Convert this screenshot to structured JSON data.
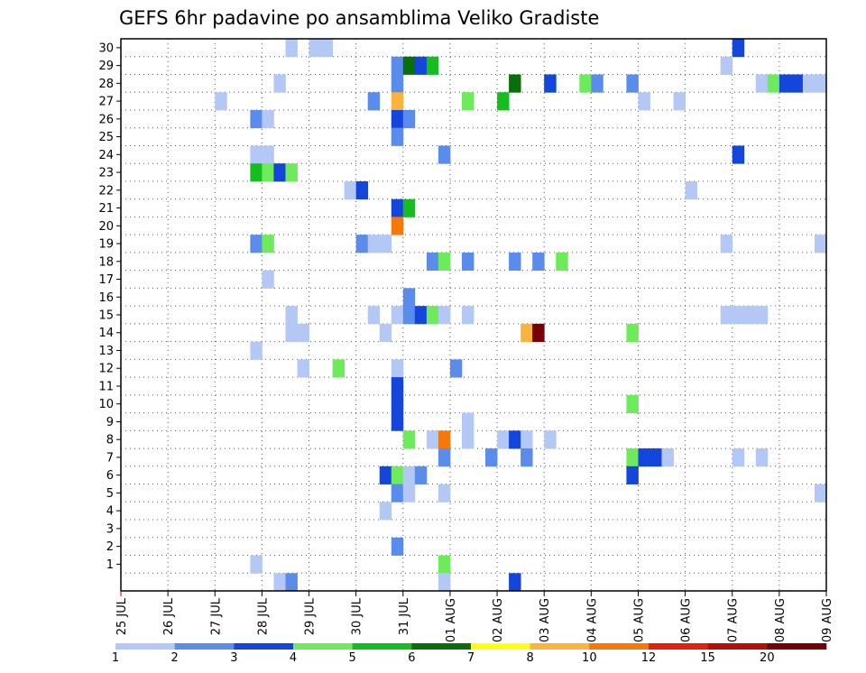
{
  "chart_data": {
    "type": "heatmap",
    "title": "GEFS 6hr padavine po ansamblima Veliko Gradiste",
    "x_ticks": [
      "25 JUL",
      "26 JUL",
      "27 JUL",
      "28 JUL",
      "29 JUL",
      "30 JUL",
      "31 JUL",
      "01 AUG",
      "02 AUG",
      "03 AUG",
      "04 AUG",
      "05 AUG",
      "06 AUG",
      "07 AUG",
      "08 AUG",
      "09 AUG"
    ],
    "y_ticks": [
      "1",
      "2",
      "3",
      "4",
      "5",
      "6",
      "7",
      "8",
      "9",
      "10",
      "11",
      "12",
      "13",
      "14",
      "15",
      "16",
      "17",
      "18",
      "19",
      "20",
      "21",
      "22",
      "23",
      "24",
      "25",
      "26",
      "27",
      "28",
      "29",
      "30"
    ],
    "xlim": [
      "25 JUL",
      "09 AUG"
    ],
    "ylim": [
      0,
      30
    ],
    "grid": true,
    "legend": {
      "placement": "bottom",
      "labels": [
        "1",
        "2",
        "3",
        "4",
        "5",
        "6",
        "7",
        "8",
        "10",
        "12",
        "15",
        "20"
      ],
      "colors": [
        "#b4c8f5",
        "#5a8ceb",
        "#1446dc",
        "#6eeb5a",
        "#14be1e",
        "#0a6e0a",
        "#ffff14",
        "#fab43c",
        "#f5780a",
        "#e61e0a",
        "#b40f0a",
        "#780005"
      ]
    },
    "cells": [
      {
        "day": "29 JUL",
        "slot": 2,
        "member": 30,
        "value": 1
      },
      {
        "day": "30 JUL",
        "slot": 0,
        "member": 30,
        "value": 1
      },
      {
        "day": "30 JUL",
        "slot": 1,
        "member": 30,
        "value": 1
      },
      {
        "day": "08 AUG",
        "slot": 0,
        "member": 30,
        "value": 3
      },
      {
        "day": "31 JUL",
        "slot": 3,
        "member": 29,
        "value": 2
      },
      {
        "day": "01 AUG",
        "slot": 0,
        "member": 29,
        "value": 6
      },
      {
        "day": "01 AUG",
        "slot": 1,
        "member": 29,
        "value": 3
      },
      {
        "day": "01 AUG",
        "slot": 2,
        "member": 29,
        "value": 5
      },
      {
        "day": "07 AUG",
        "slot": 3,
        "member": 29,
        "value": 1
      },
      {
        "day": "29 JUL",
        "slot": 1,
        "member": 28,
        "value": 1
      },
      {
        "day": "31 JUL",
        "slot": 3,
        "member": 28,
        "value": 2
      },
      {
        "day": "03 AUG",
        "slot": 1,
        "member": 28,
        "value": 6
      },
      {
        "day": "03 AUG",
        "slot": 4,
        "member": 28,
        "value": 4
      },
      {
        "day": "04 AUG",
        "slot": 0,
        "member": 28,
        "value": 3
      },
      {
        "day": "04 AUG",
        "slot": 3,
        "member": 28,
        "value": 4
      },
      {
        "day": "05 AUG",
        "slot": 0,
        "member": 28,
        "value": 2
      },
      {
        "day": "05 AUG",
        "slot": 3,
        "member": 28,
        "value": 2
      },
      {
        "day": "08 AUG",
        "slot": 2,
        "member": 28,
        "value": 1
      },
      {
        "day": "08 AUG",
        "slot": 3,
        "member": 28,
        "value": 4
      },
      {
        "day": "09 AUG",
        "slot": 0,
        "member": 28,
        "value": 3
      },
      {
        "day": "09 AUG",
        "slot": 1,
        "member": 28,
        "value": 3
      },
      {
        "day": "09 AUG",
        "slot": 2,
        "member": 28,
        "value": 1
      },
      {
        "day": "09 AUG",
        "slot": 3,
        "member": 28,
        "value": 1
      },
      {
        "day": "28 JUL",
        "slot": 0,
        "member": 27,
        "value": 1
      },
      {
        "day": "31 JUL",
        "slot": 1,
        "member": 27,
        "value": 2
      },
      {
        "day": "31 JUL",
        "slot": 3,
        "member": 27,
        "value": 8
      },
      {
        "day": "02 AUG",
        "slot": 1,
        "member": 27,
        "value": 4
      },
      {
        "day": "03 AUG",
        "slot": 0,
        "member": 27,
        "value": 5
      },
      {
        "day": "06 AUG",
        "slot": 0,
        "member": 27,
        "value": 1
      },
      {
        "day": "06 AUG",
        "slot": 3,
        "member": 27,
        "value": 1
      },
      {
        "day": "28 JUL",
        "slot": 3,
        "member": 26,
        "value": 2
      },
      {
        "day": "29 JUL",
        "slot": 0,
        "member": 26,
        "value": 1
      },
      {
        "day": "31 JUL",
        "slot": 3,
        "member": 26,
        "value": 3
      },
      {
        "day": "01 AUG",
        "slot": 0,
        "member": 26,
        "value": 2
      },
      {
        "day": "31 JUL",
        "slot": 3,
        "member": 25,
        "value": 2
      },
      {
        "day": "28 JUL",
        "slot": 3,
        "member": 24,
        "value": 1
      },
      {
        "day": "29 JUL",
        "slot": 0,
        "member": 24,
        "value": 1
      },
      {
        "day": "01 AUG",
        "slot": 3,
        "member": 24,
        "value": 2
      },
      {
        "day": "08 AUG",
        "slot": 0,
        "member": 24,
        "value": 3
      },
      {
        "day": "28 JUL",
        "slot": 3,
        "member": 23,
        "value": 5
      },
      {
        "day": "29 JUL",
        "slot": 0,
        "member": 23,
        "value": 4
      },
      {
        "day": "29 JUL",
        "slot": 1,
        "member": 23,
        "value": 3
      },
      {
        "day": "29 JUL",
        "slot": 2,
        "member": 23,
        "value": 4
      },
      {
        "day": "30 JUL",
        "slot": 3,
        "member": 22,
        "value": 1
      },
      {
        "day": "31 JUL",
        "slot": 0,
        "member": 22,
        "value": 3
      },
      {
        "day": "07 AUG",
        "slot": 0,
        "member": 22,
        "value": 1
      },
      {
        "day": "31 JUL",
        "slot": 3,
        "member": 21,
        "value": 3
      },
      {
        "day": "01 AUG",
        "slot": 0,
        "member": 21,
        "value": 5
      },
      {
        "day": "31 JUL",
        "slot": 3,
        "member": 20,
        "value": 10
      },
      {
        "day": "28 JUL",
        "slot": 3,
        "member": 19,
        "value": 2
      },
      {
        "day": "29 JUL",
        "slot": 0,
        "member": 19,
        "value": 4
      },
      {
        "day": "31 JUL",
        "slot": 0,
        "member": 19,
        "value": 2
      },
      {
        "day": "31 JUL",
        "slot": 1,
        "member": 19,
        "value": 1
      },
      {
        "day": "31 JUL",
        "slot": 2,
        "member": 19,
        "value": 1
      },
      {
        "day": "07 AUG",
        "slot": 3,
        "member": 19,
        "value": 1
      },
      {
        "day": "09 AUG",
        "slot": 3,
        "member": 19,
        "value": 1
      },
      {
        "day": "01 AUG",
        "slot": 2,
        "member": 18,
        "value": 2
      },
      {
        "day": "01 AUG",
        "slot": 3,
        "member": 18,
        "value": 4
      },
      {
        "day": "02 AUG",
        "slot": 1,
        "member": 18,
        "value": 2
      },
      {
        "day": "03 AUG",
        "slot": 1,
        "member": 18,
        "value": 2
      },
      {
        "day": "03 AUG",
        "slot": 3,
        "member": 18,
        "value": 2
      },
      {
        "day": "04 AUG",
        "slot": 1,
        "member": 18,
        "value": 4
      },
      {
        "day": "29 JUL",
        "slot": 0,
        "member": 17,
        "value": 1
      },
      {
        "day": "01 AUG",
        "slot": 0,
        "member": 16,
        "value": 2
      },
      {
        "day": "29 JUL",
        "slot": 2,
        "member": 15,
        "value": 1
      },
      {
        "day": "31 JUL",
        "slot": 1,
        "member": 15,
        "value": 1
      },
      {
        "day": "31 JUL",
        "slot": 3,
        "member": 15,
        "value": 1
      },
      {
        "day": "01 AUG",
        "slot": 0,
        "member": 15,
        "value": 2
      },
      {
        "day": "01 AUG",
        "slot": 1,
        "member": 15,
        "value": 3
      },
      {
        "day": "01 AUG",
        "slot": 2,
        "member": 15,
        "value": 4
      },
      {
        "day": "01 AUG",
        "slot": 3,
        "member": 15,
        "value": 1
      },
      {
        "day": "02 AUG",
        "slot": 1,
        "member": 15,
        "value": 1
      },
      {
        "day": "07 AUG",
        "slot": 3,
        "member": 15,
        "value": 1
      },
      {
        "day": "08 AUG",
        "slot": 0,
        "member": 15,
        "value": 1
      },
      {
        "day": "08 AUG",
        "slot": 1,
        "member": 15,
        "value": 1
      },
      {
        "day": "08 AUG",
        "slot": 2,
        "member": 15,
        "value": 1
      },
      {
        "day": "29 JUL",
        "slot": 2,
        "member": 14,
        "value": 1
      },
      {
        "day": "29 JUL",
        "slot": 3,
        "member": 14,
        "value": 1
      },
      {
        "day": "31 JUL",
        "slot": 2,
        "member": 14,
        "value": 1
      },
      {
        "day": "03 AUG",
        "slot": 2,
        "member": 14,
        "value": 8
      },
      {
        "day": "03 AUG",
        "slot": 3,
        "member": 14,
        "value": 20
      },
      {
        "day": "05 AUG",
        "slot": 3,
        "member": 14,
        "value": 4
      },
      {
        "day": "28 JUL",
        "slot": 3,
        "member": 13,
        "value": 1
      },
      {
        "day": "29 JUL",
        "slot": 3,
        "member": 12,
        "value": 1
      },
      {
        "day": "30 JUL",
        "slot": 2,
        "member": 12,
        "value": 4
      },
      {
        "day": "31 JUL",
        "slot": 3,
        "member": 12,
        "value": 1
      },
      {
        "day": "02 AUG",
        "slot": 0,
        "member": 12,
        "value": 2
      },
      {
        "day": "31 JUL",
        "slot": 3,
        "member": 11,
        "value": 3
      },
      {
        "day": "31 JUL",
        "slot": 3,
        "member": 10,
        "value": 3
      },
      {
        "day": "05 AUG",
        "slot": 3,
        "member": 10,
        "value": 4
      },
      {
        "day": "31 JUL",
        "slot": 3,
        "member": 9,
        "value": 3
      },
      {
        "day": "02 AUG",
        "slot": 1,
        "member": 9,
        "value": 1
      },
      {
        "day": "01 AUG",
        "slot": 0,
        "member": 8,
        "value": 4
      },
      {
        "day": "01 AUG",
        "slot": 2,
        "member": 8,
        "value": 1
      },
      {
        "day": "01 AUG",
        "slot": 3,
        "member": 8,
        "value": 10
      },
      {
        "day": "02 AUG",
        "slot": 1,
        "member": 8,
        "value": 1
      },
      {
        "day": "03 AUG",
        "slot": 0,
        "member": 8,
        "value": 1
      },
      {
        "day": "03 AUG",
        "slot": 1,
        "member": 8,
        "value": 3
      },
      {
        "day": "03 AUG",
        "slot": 2,
        "member": 8,
        "value": 1
      },
      {
        "day": "04 AUG",
        "slot": 0,
        "member": 8,
        "value": 1
      },
      {
        "day": "01 AUG",
        "slot": 3,
        "member": 7,
        "value": 2
      },
      {
        "day": "02 AUG",
        "slot": 3,
        "member": 7,
        "value": 2
      },
      {
        "day": "03 AUG",
        "slot": 2,
        "member": 7,
        "value": 2
      },
      {
        "day": "05 AUG",
        "slot": 3,
        "member": 7,
        "value": 4
      },
      {
        "day": "06 AUG",
        "slot": 0,
        "member": 7,
        "value": 3
      },
      {
        "day": "06 AUG",
        "slot": 1,
        "member": 7,
        "value": 3
      },
      {
        "day": "06 AUG",
        "slot": 2,
        "member": 7,
        "value": 1
      },
      {
        "day": "08 AUG",
        "slot": 0,
        "member": 7,
        "value": 1
      },
      {
        "day": "08 AUG",
        "slot": 2,
        "member": 7,
        "value": 1
      },
      {
        "day": "31 JUL",
        "slot": 2,
        "member": 6,
        "value": 3
      },
      {
        "day": "31 JUL",
        "slot": 3,
        "member": 6,
        "value": 4
      },
      {
        "day": "01 AUG",
        "slot": 0,
        "member": 6,
        "value": 1
      },
      {
        "day": "01 AUG",
        "slot": 1,
        "member": 6,
        "value": 2
      },
      {
        "day": "05 AUG",
        "slot": 3,
        "member": 6,
        "value": 3
      },
      {
        "day": "31 JUL",
        "slot": 3,
        "member": 5,
        "value": 2
      },
      {
        "day": "01 AUG",
        "slot": 0,
        "member": 5,
        "value": 1
      },
      {
        "day": "01 AUG",
        "slot": 3,
        "member": 5,
        "value": 1
      },
      {
        "day": "09 AUG",
        "slot": 3,
        "member": 5,
        "value": 1
      },
      {
        "day": "31 JUL",
        "slot": 2,
        "member": 4,
        "value": 1
      },
      {
        "day": "31 JUL",
        "slot": 3,
        "member": 2,
        "value": 2
      },
      {
        "day": "28 JUL",
        "slot": 3,
        "member": 1,
        "value": 1
      },
      {
        "day": "01 AUG",
        "slot": 3,
        "member": 1,
        "value": 4
      },
      {
        "day": "29 JUL",
        "slot": 1,
        "member": 0,
        "value": 1
      },
      {
        "day": "29 JUL",
        "slot": 2,
        "member": 0,
        "value": 2
      },
      {
        "day": "01 AUG",
        "slot": 3,
        "member": 0,
        "value": 1
      },
      {
        "day": "03 AUG",
        "slot": 1,
        "member": 0,
        "value": 3
      }
    ]
  }
}
